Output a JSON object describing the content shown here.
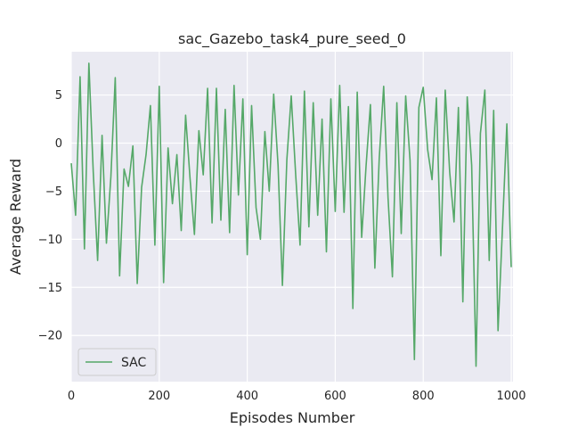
{
  "chart_data": {
    "type": "line",
    "title": "sac_Gazebo_task4_pure_seed_0",
    "xlabel": "Episodes Number",
    "ylabel": "Average Reward",
    "xlim": [
      0,
      1004
    ],
    "ylim": [
      -24.8,
      9.5
    ],
    "xticks": [
      0,
      200,
      400,
      600,
      800,
      1000
    ],
    "yticks": [
      -20,
      -15,
      -10,
      -5,
      0,
      5
    ],
    "grid": true,
    "legend_position": "lower-left",
    "colors": {
      "background": "#EAEAF2",
      "grid": "#FFFFFF",
      "series": "#55A868",
      "text": "#262626"
    },
    "series": [
      {
        "name": "SAC",
        "x": [
          0,
          10,
          20,
          30,
          40,
          50,
          60,
          70,
          80,
          90,
          100,
          110,
          120,
          130,
          140,
          150,
          160,
          170,
          180,
          190,
          200,
          210,
          220,
          230,
          240,
          250,
          260,
          270,
          280,
          290,
          300,
          310,
          320,
          330,
          340,
          350,
          360,
          370,
          380,
          390,
          400,
          410,
          420,
          430,
          440,
          450,
          460,
          470,
          480,
          490,
          500,
          510,
          520,
          530,
          540,
          550,
          560,
          570,
          580,
          590,
          600,
          610,
          620,
          630,
          640,
          650,
          660,
          670,
          680,
          690,
          700,
          710,
          720,
          730,
          740,
          750,
          760,
          770,
          780,
          790,
          800,
          810,
          820,
          830,
          840,
          850,
          860,
          870,
          880,
          890,
          900,
          910,
          920,
          930,
          940,
          950,
          960,
          970,
          980,
          990,
          1000
        ],
        "y": [
          -2.1,
          -7.5,
          6.9,
          -11.0,
          8.3,
          -3.0,
          -12.2,
          0.8,
          -10.4,
          -3.5,
          6.8,
          -13.8,
          -2.7,
          -4.5,
          -0.3,
          -14.6,
          -4.6,
          -1.2,
          3.9,
          -10.6,
          5.9,
          -14.5,
          -0.5,
          -6.3,
          -1.2,
          -9.1,
          2.9,
          -3.7,
          -9.5,
          1.3,
          -3.3,
          5.7,
          -8.3,
          5.7,
          -8.0,
          3.5,
          -9.3,
          6.0,
          -5.4,
          4.6,
          -11.6,
          3.9,
          -6.7,
          -10.0,
          1.2,
          -5.0,
          5.1,
          -2.3,
          -14.8,
          -1.7,
          4.9,
          -3.3,
          -10.6,
          5.4,
          -8.7,
          4.2,
          -7.5,
          2.5,
          -11.3,
          4.6,
          -7.1,
          6.0,
          -7.2,
          3.8,
          -17.2,
          5.3,
          -9.8,
          -2.4,
          4.0,
          -13.0,
          -1.6,
          5.9,
          -5.7,
          -13.9,
          4.2,
          -9.4,
          4.9,
          -1.8,
          -22.5,
          3.7,
          5.8,
          -0.7,
          -3.8,
          4.7,
          -11.7,
          5.5,
          -3.0,
          -8.2,
          3.7,
          -16.5,
          4.8,
          -2.3,
          -23.2,
          1.0,
          5.5,
          -12.2,
          3.4,
          -19.5,
          -9.0,
          2.0,
          -12.9
        ]
      }
    ]
  }
}
